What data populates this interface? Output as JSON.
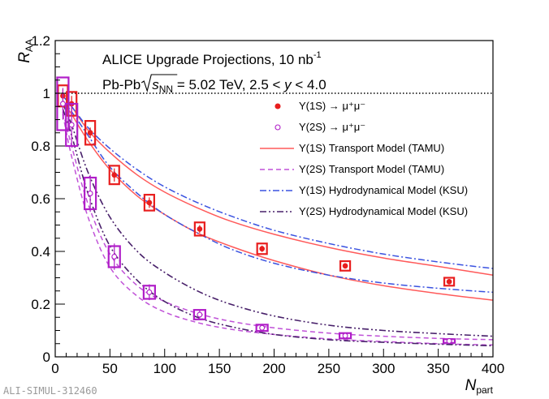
{
  "chart_data": {
    "type": "scatter",
    "title": "",
    "xlabel": "N",
    "xlabel_sub": "part",
    "ylabel": "R",
    "ylabel_sub": "AA",
    "xlim": [
      0,
      400
    ],
    "ylim": [
      0,
      1.2
    ],
    "x_ticks": [
      "0",
      "50",
      "100",
      "150",
      "200",
      "250",
      "300",
      "350",
      "400"
    ],
    "y_ticks": [
      "0",
      "0.2",
      "0.4",
      "0.6",
      "0.8",
      "1",
      "1.2"
    ],
    "reference_line_y": 1,
    "annotations": {
      "line1": "ALICE Upgrade Projections, 10 nb",
      "line1_sup": "-1",
      "line2_pre": "Pb-Pb ",
      "line2_root": "s",
      "line2_root_sub": "NN",
      "line2_post": " = 5.02 TeV, 2.5 < ",
      "line2_var": "y",
      "line2_end": " < 4.0"
    },
    "watermark": "ALI-SIMUL-312460",
    "legend_position": "upper-right",
    "colors": {
      "ups1s": "#e81e1e",
      "ups2s": "#b01ec8",
      "tamu1s": "#ff5a5a",
      "tamu2s": "#c052d8",
      "ksu1s": "#3a52e0",
      "ksu2s": "#48206a"
    },
    "series": [
      {
        "name": "Υ(1S) → μ⁺μ⁻",
        "kind": "points",
        "marker": "filled-circle",
        "x": [
          7,
          15,
          32,
          54,
          86,
          132,
          189,
          265,
          360
        ],
        "y": [
          0.99,
          0.96,
          0.85,
          0.69,
          0.585,
          0.485,
          0.41,
          0.345,
          0.285
        ],
        "stat_err": [
          0.025,
          0.03,
          0.02,
          0.025,
          0.02,
          0.015,
          0.012,
          0.01,
          0.01
        ],
        "syst_err": [
          0.04,
          0.045,
          0.045,
          0.035,
          0.03,
          0.025,
          0.02,
          0.018,
          0.015
        ]
      },
      {
        "name": "Υ(2S) → μ⁺μ⁻",
        "kind": "points",
        "marker": "open-circle",
        "x": [
          7,
          15,
          32,
          54,
          86,
          132,
          189,
          265,
          360
        ],
        "y": [
          0.96,
          0.88,
          0.62,
          0.38,
          0.245,
          0.16,
          0.11,
          0.08,
          0.06
        ],
        "stat_err": [
          0.06,
          0.08,
          0.07,
          0.05,
          0.03,
          0.02,
          0.015,
          0.01,
          0.008
        ],
        "syst_err": [
          0.1,
          0.08,
          0.06,
          0.04,
          0.025,
          0.018,
          0.012,
          0.01,
          0.007
        ]
      },
      {
        "name": "Υ(1S) Transport Model (TAMU)",
        "kind": "band",
        "style": "solid",
        "x": [
          7,
          15,
          30,
          50,
          75,
          100,
          130,
          160,
          200,
          250,
          300,
          350,
          400
        ],
        "upper": [
          0.99,
          0.95,
          0.86,
          0.775,
          0.69,
          0.625,
          0.565,
          0.515,
          0.465,
          0.415,
          0.375,
          0.343,
          0.31
        ],
        "lower": [
          0.97,
          0.92,
          0.82,
          0.71,
          0.61,
          0.54,
          0.47,
          0.42,
          0.365,
          0.31,
          0.27,
          0.24,
          0.215
        ]
      },
      {
        "name": "Υ(2S) Transport Model (TAMU)",
        "kind": "band",
        "style": "dashed",
        "x": [
          7,
          15,
          30,
          50,
          75,
          100,
          130,
          160,
          200,
          250,
          300,
          350,
          400
        ],
        "upper": [
          0.93,
          0.8,
          0.58,
          0.39,
          0.27,
          0.21,
          0.165,
          0.135,
          0.11,
          0.09,
          0.078,
          0.07,
          0.065
        ],
        "lower": [
          0.92,
          0.76,
          0.53,
          0.34,
          0.23,
          0.17,
          0.13,
          0.105,
          0.085,
          0.068,
          0.058,
          0.05,
          0.045
        ]
      },
      {
        "name": "Υ(1S) Hydrodynamical Model (KSU)",
        "kind": "band",
        "style": "dash-dot",
        "x": [
          7,
          15,
          30,
          50,
          75,
          100,
          130,
          160,
          200,
          250,
          300,
          350,
          400
        ],
        "upper": [
          0.99,
          0.95,
          0.87,
          0.79,
          0.71,
          0.645,
          0.585,
          0.535,
          0.48,
          0.43,
          0.39,
          0.36,
          0.335
        ],
        "lower": [
          0.97,
          0.93,
          0.84,
          0.72,
          0.62,
          0.54,
          0.47,
          0.41,
          0.355,
          0.31,
          0.28,
          0.26,
          0.245
        ]
      },
      {
        "name": "Υ(2S) Hydrodynamical Model (KSU)",
        "kind": "band",
        "style": "dash-dot-dot",
        "x": [
          7,
          15,
          30,
          50,
          75,
          100,
          130,
          160,
          200,
          250,
          300,
          350,
          400
        ],
        "upper": [
          0.96,
          0.88,
          0.7,
          0.53,
          0.4,
          0.32,
          0.25,
          0.2,
          0.155,
          0.12,
          0.1,
          0.088,
          0.078
        ],
        "lower": [
          0.94,
          0.84,
          0.62,
          0.42,
          0.29,
          0.21,
          0.15,
          0.115,
          0.085,
          0.065,
          0.055,
          0.048,
          0.042
        ]
      }
    ]
  }
}
